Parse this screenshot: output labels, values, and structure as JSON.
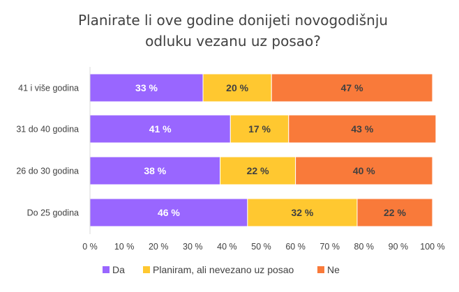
{
  "chart_data": {
    "type": "bar",
    "orientation": "horizontal",
    "stacked": true,
    "title": [
      "Planirate li ove godine donijeti novogodišnju",
      "odluku vezanu uz posao?"
    ],
    "categories": [
      "41 i više godina",
      "31 do 40 godina",
      "26 do 30 godina",
      "Do 25 godina"
    ],
    "series": [
      {
        "name": "Da",
        "color": "#9966FF",
        "label_color": "#ffffff",
        "values": [
          33,
          41,
          38,
          46
        ]
      },
      {
        "name": "Planiram, ali nevezano uz posao",
        "color": "#FFC830",
        "label_color": "#404040",
        "values": [
          20,
          17,
          22,
          32
        ]
      },
      {
        "name": "Ne",
        "color": "#F97A3A",
        "label_color": "#404040",
        "values": [
          47,
          43,
          40,
          22
        ]
      }
    ],
    "value_suffix": " %",
    "xlim": [
      0,
      100
    ],
    "x_ticks": [
      "0 %",
      "10 %",
      "20 %",
      "30 %",
      "40 %",
      "50 %",
      "60 %",
      "70 %",
      "80 %",
      "90 %",
      "100 %"
    ],
    "grid": false,
    "legend_position": "bottom"
  }
}
